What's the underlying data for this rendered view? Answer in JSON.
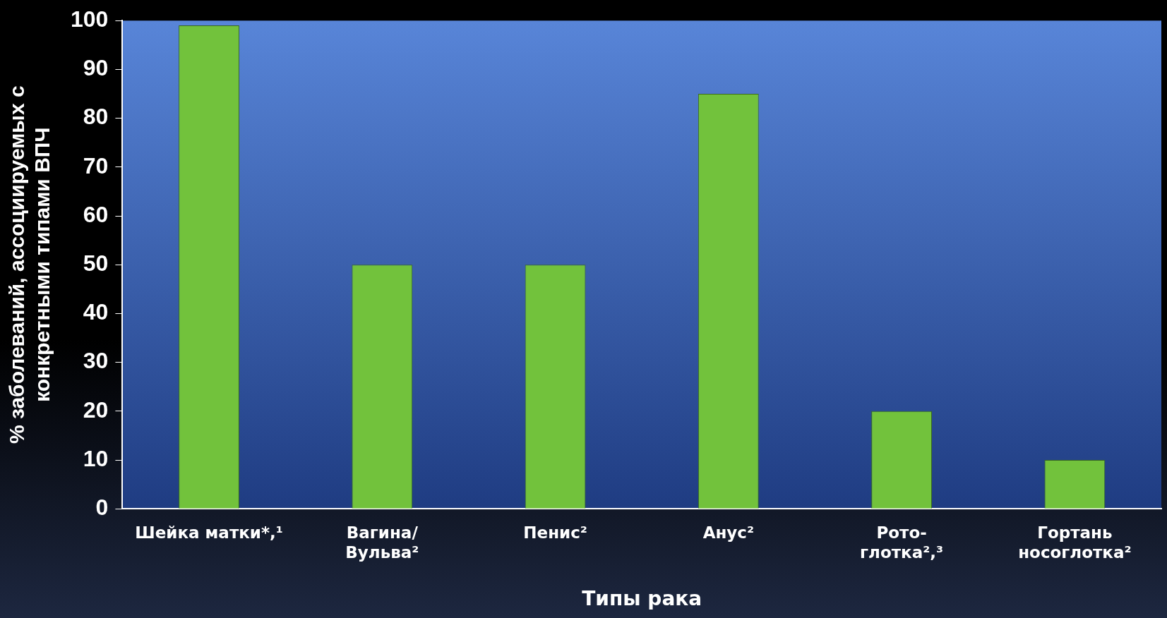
{
  "chart_data": {
    "type": "bar",
    "categories": [
      "Шейка матки*,¹",
      "Вагина/\nВульва²",
      "Пенис²",
      "Анус²",
      "Рото-\nглотка²,³",
      "Гортань\nносоглотка²"
    ],
    "values": [
      99,
      50,
      50,
      85,
      20,
      10
    ],
    "color": "#72c23c",
    "ylim": [
      0,
      100
    ],
    "yticks": [
      0,
      10,
      20,
      30,
      40,
      50,
      60,
      70,
      80,
      90,
      100
    ],
    "ylabel": "% заболеваний, ассоциируемых с\nконкретными типами ВПЧ",
    "xlabel": "Типы рака",
    "grid": false,
    "legend": false
  }
}
